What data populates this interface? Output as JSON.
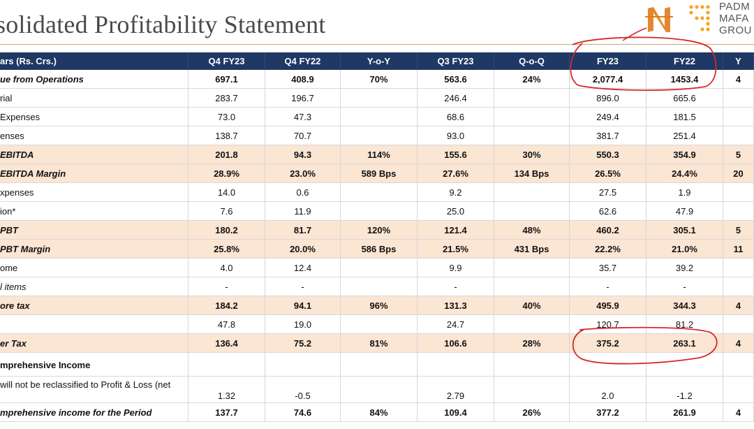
{
  "title": "solidated Profitability Statement",
  "logo": {
    "lines": [
      "PADM",
      "MAFA",
      "GROU"
    ]
  },
  "columns": [
    "ars (Rs. Crs.)",
    "Q4 FY23",
    "Q4 FY22",
    "Y-o-Y",
    "Q3 FY23",
    "Q-o-Q",
    "FY23",
    "FY22",
    "Y"
  ],
  "rows": [
    {
      "cells": [
        "ue from Operations",
        "697.1",
        "408.9",
        "70%",
        "563.6",
        "24%",
        "2,077.4",
        "1453.4",
        "4"
      ],
      "style": "bold"
    },
    {
      "cells": [
        "rial",
        "283.7",
        "196.7",
        "",
        "246.4",
        "",
        "896.0",
        "665.6",
        ""
      ],
      "style": "normal"
    },
    {
      "cells": [
        " Expenses",
        "73.0",
        "47.3",
        "",
        "68.6",
        "",
        "249.4",
        "181.5",
        ""
      ],
      "style": "normal"
    },
    {
      "cells": [
        "enses",
        "138.7",
        "70.7",
        "",
        "93.0",
        "",
        "381.7",
        "251.4",
        ""
      ],
      "style": "normal"
    },
    {
      "cells": [
        "EBITDA",
        "201.8",
        "94.3",
        "114%",
        "155.6",
        "30%",
        "550.3",
        "354.9",
        "5"
      ],
      "style": "highlight"
    },
    {
      "cells": [
        "EBITDA Margin",
        "28.9%",
        "23.0%",
        "589 Bps",
        "27.6%",
        "134 Bps",
        "26.5%",
        "24.4%",
        "20"
      ],
      "style": "highlight"
    },
    {
      "cells": [
        "xpenses",
        "14.0",
        "0.6",
        "",
        "9.2",
        "",
        "27.5",
        "1.9",
        ""
      ],
      "style": "normal"
    },
    {
      "cells": [
        "ion*",
        "7.6",
        "11.9",
        "",
        "25.0",
        "",
        "62.6",
        "47.9",
        ""
      ],
      "style": "normal"
    },
    {
      "cells": [
        "PBT",
        "180.2",
        "81.7",
        "120%",
        "121.4",
        "48%",
        "460.2",
        "305.1",
        "5"
      ],
      "style": "highlight"
    },
    {
      "cells": [
        "PBT Margin",
        "25.8%",
        "20.0%",
        "586 Bps",
        "21.5%",
        "431 Bps",
        "22.2%",
        "21.0%",
        "11"
      ],
      "style": "highlight"
    },
    {
      "cells": [
        "ome",
        "4.0",
        "12.4",
        "",
        "9.9",
        "",
        "35.7",
        "39.2",
        ""
      ],
      "style": "normal"
    },
    {
      "cells": [
        "l items",
        "-",
        "-",
        "",
        "-",
        "",
        "-",
        "-",
        ""
      ],
      "style": "italic"
    },
    {
      "cells": [
        "ore tax",
        "184.2",
        "94.1",
        "96%",
        "131.3",
        "40%",
        "495.9",
        "344.3",
        "4"
      ],
      "style": "highlight"
    },
    {
      "cells": [
        "",
        "47.8",
        "19.0",
        "",
        "24.7",
        "",
        "120.7",
        "81.2",
        ""
      ],
      "style": "normal"
    },
    {
      "cells": [
        "er Tax",
        "136.4",
        "75.2",
        "81%",
        "106.6",
        "28%",
        "375.2",
        "263.1",
        "4"
      ],
      "style": "highlight"
    },
    {
      "cells": [
        "mprehensive Income",
        "",
        "",
        "",
        "",
        "",
        "",
        "",
        ""
      ],
      "style": "section"
    },
    {
      "cells": [
        " will not be reclassified to Profit & Loss (net",
        "1.32",
        "-0.5",
        "",
        "2.79",
        "",
        "2.0",
        "-1.2",
        ""
      ],
      "style": "tall"
    },
    {
      "cells": [
        "mprehensive income for the Period",
        "137.7",
        "74.6",
        "84%",
        "109.4",
        "26%",
        "377.2",
        "261.9",
        "4"
      ],
      "style": "bold"
    }
  ]
}
